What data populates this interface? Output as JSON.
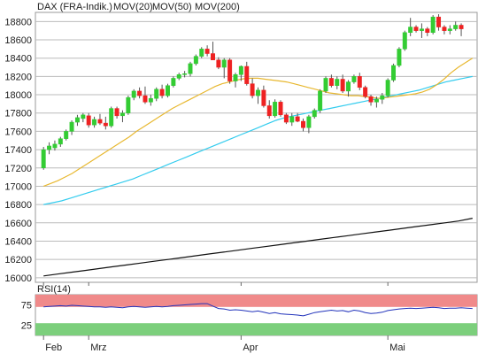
{
  "colors": {
    "candle_up": "#33cc33",
    "candle_down": "#ee2222",
    "mov20": "#e8b830",
    "mov50": "#33ccee",
    "mov200": "#111111",
    "rsi_line": "#2233bb",
    "rsi_overbought": "#f08a8a",
    "rsi_oversold": "#7ccf7c",
    "grid": "#bbbbbb"
  },
  "chart_data": [
    {
      "type": "candlestick",
      "legend": [
        {
          "label": "DAX (FRA-Indik.)",
          "color": "#cc2222"
        },
        {
          "label": "MOV(20)",
          "color": "#e8b830"
        },
        {
          "label": "MOV(50)",
          "color": "#33ccee"
        },
        {
          "label": "MOV(200)",
          "color": "#111111"
        }
      ],
      "ylim": [
        15950,
        18900
      ],
      "yticks": [
        16000,
        16200,
        16400,
        16600,
        16800,
        17000,
        17200,
        17400,
        17600,
        17800,
        18000,
        18200,
        18400,
        18600,
        18800
      ],
      "x_labels": [
        {
          "label": "Feb",
          "index": 0
        },
        {
          "label": "Mrz",
          "index": 8
        },
        {
          "label": "Apr",
          "index": 35
        },
        {
          "label": "Mai",
          "index": 61
        }
      ],
      "n": 77,
      "candles": [
        [
          17200,
          17430,
          17180,
          17400
        ],
        [
          17400,
          17480,
          17350,
          17440
        ],
        [
          17420,
          17500,
          17390,
          17460
        ],
        [
          17460,
          17540,
          17430,
          17520
        ],
        [
          17520,
          17620,
          17500,
          17600
        ],
        [
          17600,
          17720,
          17560,
          17700
        ],
        [
          17700,
          17780,
          17660,
          17750
        ],
        [
          17740,
          17800,
          17700,
          17780
        ],
        [
          17770,
          17800,
          17640,
          17670
        ],
        [
          17670,
          17760,
          17640,
          17730
        ],
        [
          17730,
          17790,
          17670,
          17690
        ],
        [
          17690,
          17760,
          17620,
          17660
        ],
        [
          17660,
          17870,
          17640,
          17850
        ],
        [
          17850,
          17870,
          17740,
          17770
        ],
        [
          17770,
          17830,
          17700,
          17800
        ],
        [
          17800,
          17990,
          17780,
          17970
        ],
        [
          17970,
          18060,
          17940,
          18040
        ],
        [
          18040,
          18080,
          17960,
          17990
        ],
        [
          17990,
          18090,
          17900,
          17920
        ],
        [
          17920,
          18000,
          17880,
          17960
        ],
        [
          17960,
          18080,
          17930,
          18060
        ],
        [
          18060,
          18110,
          17960,
          17990
        ],
        [
          17990,
          18120,
          17970,
          18100
        ],
        [
          18100,
          18200,
          18080,
          18180
        ],
        [
          18180,
          18240,
          18160,
          18220
        ],
        [
          18220,
          18260,
          18190,
          18230
        ],
        [
          18230,
          18360,
          18200,
          18340
        ],
        [
          18340,
          18440,
          18320,
          18420
        ],
        [
          18420,
          18520,
          18400,
          18500
        ],
        [
          18500,
          18540,
          18420,
          18450
        ],
        [
          18450,
          18580,
          18400,
          18380
        ],
        [
          18380,
          18410,
          18280,
          18300
        ],
        [
          18300,
          18400,
          18180,
          18380
        ],
        [
          18380,
          18400,
          18120,
          18150
        ],
        [
          18150,
          18240,
          18080,
          18220
        ],
        [
          18220,
          18320,
          18150,
          18310
        ],
        [
          18310,
          18360,
          18100,
          18120
        ],
        [
          18120,
          18180,
          17960,
          17990
        ],
        [
          17990,
          18080,
          17900,
          18050
        ],
        [
          18050,
          18100,
          17860,
          17880
        ],
        [
          17880,
          17940,
          17740,
          17770
        ],
        [
          17770,
          17950,
          17750,
          17920
        ],
        [
          17920,
          17940,
          17760,
          17780
        ],
        [
          17780,
          17800,
          17680,
          17700
        ],
        [
          17700,
          17800,
          17660,
          17760
        ],
        [
          17760,
          17800,
          17700,
          17710
        ],
        [
          17710,
          17740,
          17600,
          17640
        ],
        [
          17640,
          17780,
          17580,
          17760
        ],
        [
          17760,
          17850,
          17740,
          17830
        ],
        [
          17830,
          18060,
          17800,
          18040
        ],
        [
          18040,
          18200,
          18020,
          18180
        ],
        [
          18180,
          18220,
          18080,
          18100
        ],
        [
          18100,
          18200,
          18060,
          18170
        ],
        [
          18170,
          18220,
          18020,
          18040
        ],
        [
          18040,
          18160,
          17980,
          18140
        ],
        [
          18140,
          18220,
          18120,
          18200
        ],
        [
          18200,
          18240,
          18050,
          18080
        ],
        [
          18080,
          18100,
          17960,
          17980
        ],
        [
          17980,
          18000,
          17880,
          17920
        ],
        [
          17920,
          17980,
          17860,
          17950
        ],
        [
          17950,
          18020,
          17900,
          17990
        ],
        [
          17990,
          18180,
          17970,
          18160
        ],
        [
          18160,
          18340,
          18140,
          18320
        ],
        [
          18320,
          18520,
          18300,
          18500
        ],
        [
          18500,
          18700,
          18480,
          18680
        ],
        [
          18680,
          18840,
          18640,
          18740
        ],
        [
          18740,
          18760,
          18680,
          18700
        ],
        [
          18700,
          18780,
          18620,
          18720
        ],
        [
          18720,
          18740,
          18640,
          18680
        ],
        [
          18680,
          18870,
          18660,
          18850
        ],
        [
          18850,
          18880,
          18700,
          18740
        ],
        [
          18740,
          18760,
          18660,
          18700
        ],
        [
          18700,
          18760,
          18660,
          18720
        ],
        [
          18720,
          18800,
          18700,
          18760
        ],
        [
          18760,
          18780,
          18640,
          18720
        ]
      ],
      "mov20": [
        17000,
        17030,
        17060,
        17100,
        17140,
        17190,
        17240,
        17290,
        17340,
        17390,
        17440,
        17490,
        17540,
        17600,
        17650,
        17700,
        17750,
        17800,
        17850,
        17890,
        17930,
        17970,
        18010,
        18050,
        18090,
        18120,
        18140,
        18160,
        18175,
        18180,
        18180,
        18170,
        18160,
        18150,
        18140,
        18120,
        18100,
        18080,
        18060,
        18040,
        18020,
        18010,
        18000,
        17990,
        17990,
        17980,
        17970,
        17960,
        17970,
        17980,
        17990,
        18000,
        18010,
        18030,
        18060,
        18110,
        18170,
        18240,
        18300,
        18350,
        18400
      ],
      "mov20_start": 0,
      "mov50": [
        16800,
        16820,
        16840,
        16870,
        16900,
        16930,
        16960,
        16990,
        17020,
        17050,
        17080,
        17120,
        17160,
        17200,
        17240,
        17280,
        17320,
        17360,
        17400,
        17440,
        17480,
        17520,
        17560,
        17600,
        17640,
        17680,
        17720,
        17750,
        17770,
        17790,
        17810,
        17830,
        17850,
        17870,
        17890,
        17910,
        17930,
        17950,
        17970,
        17990,
        18010,
        18030,
        18050,
        18080,
        18110,
        18140,
        18160,
        18180,
        18200
      ],
      "mov50_start": 0,
      "mov200": [
        16020,
        16040,
        16060,
        16080,
        16100,
        16120,
        16140,
        16160,
        16180,
        16200,
        16220,
        16240,
        16260,
        16280,
        16300,
        16320,
        16340,
        16360,
        16380,
        16400,
        16420,
        16440,
        16460,
        16480,
        16500,
        16520,
        16540,
        16560,
        16580,
        16600,
        16620,
        16650
      ],
      "mov200_start": 0
    },
    {
      "type": "line",
      "label": "RSI(14)",
      "ylim": [
        0,
        100
      ],
      "yticks": [
        25,
        75
      ],
      "overbought": 70,
      "oversold": 30,
      "values": [
        70,
        71,
        72,
        73,
        72,
        74,
        73,
        72,
        71,
        70,
        70,
        69,
        70,
        69,
        68,
        70,
        71,
        70,
        69,
        70,
        71,
        70,
        71,
        73,
        74,
        75,
        76,
        77,
        78,
        78,
        72,
        66,
        65,
        62,
        63,
        62,
        60,
        58,
        60,
        57,
        54,
        56,
        53,
        52,
        51,
        50,
        48,
        52,
        56,
        58,
        60,
        62,
        60,
        61,
        58,
        62,
        60,
        56,
        54,
        55,
        57,
        61,
        63,
        65,
        66,
        67,
        66,
        67,
        68,
        69,
        68,
        66,
        67,
        67,
        68,
        67,
        66
      ]
    }
  ]
}
